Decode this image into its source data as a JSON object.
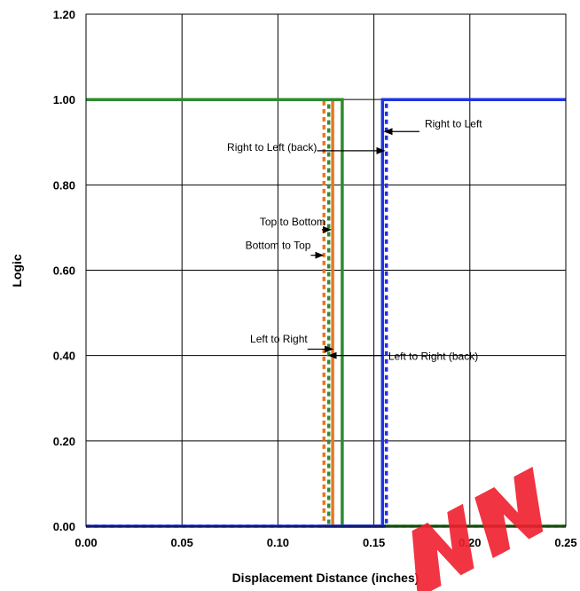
{
  "chart_data": {
    "type": "line",
    "xlabel": "Displacement Distance (inches)",
    "ylabel": "Logic",
    "xlim": [
      0,
      0.25
    ],
    "ylim": [
      0,
      1.2
    ],
    "xticks": [
      "0.00",
      "0.05",
      "0.10",
      "0.15",
      "0.20",
      "0.25"
    ],
    "yticks": [
      "0.00",
      "0.20",
      "0.40",
      "0.60",
      "0.80",
      "1.00",
      "1.20"
    ],
    "grid": true,
    "legend": "none",
    "series": [
      {
        "color": "#e87722",
        "dash": "dotted",
        "style": "falling",
        "x": [
          0,
          0.124,
          0.124,
          0.25
        ],
        "y": [
          1,
          1,
          0,
          0
        ]
      },
      {
        "color": "#e87722",
        "dash": "solid",
        "style": "falling",
        "x": [
          0,
          0.1285,
          0.1285,
          0.25
        ],
        "y": [
          1,
          1,
          0,
          0
        ]
      },
      {
        "color": "#2e8b2e",
        "dash": "dotted",
        "style": "falling",
        "x": [
          0,
          0.1265,
          0.1265,
          0.25
        ],
        "y": [
          1,
          1,
          0,
          0
        ]
      },
      {
        "color": "#2e8b2e",
        "dash": "solid",
        "style": "falling",
        "x": [
          0,
          0.1335,
          0.1335,
          0.25
        ],
        "y": [
          1,
          1,
          0,
          0
        ]
      },
      {
        "color": "#1f35e0",
        "dash": "solid",
        "style": "rising",
        "x": [
          0,
          0.1545,
          0.1545,
          0.25
        ],
        "y": [
          0,
          0,
          1,
          1
        ]
      },
      {
        "color": "#1f35e0",
        "dash": "dotted",
        "style": "rising",
        "x": [
          0,
          0.1565,
          0.1565,
          0.25
        ],
        "y": [
          0,
          0,
          1,
          1
        ]
      }
    ],
    "annotations": [
      {
        "text": "Right to Left",
        "label_x": 0.1765,
        "label_y": 0.935,
        "arrow_to_x": 0.1555,
        "arrow_to_y": 0.925
      },
      {
        "text": "Right to Left (back)",
        "label_x": 0.0735,
        "label_y": 0.88,
        "arrow_to_x": 0.1555,
        "arrow_to_y": 0.88
      },
      {
        "text": "Top to Bottom",
        "label_x": 0.0905,
        "label_y": 0.705,
        "arrow_to_x": 0.1275,
        "arrow_to_y": 0.695
      },
      {
        "text": "Bottom to Top",
        "label_x": 0.083,
        "label_y": 0.65,
        "arrow_to_x": 0.1235,
        "arrow_to_y": 0.635
      },
      {
        "text": "Left to Right",
        "label_x": 0.0855,
        "label_y": 0.43,
        "arrow_to_x": 0.1285,
        "arrow_to_y": 0.415
      },
      {
        "text": "Left to Right (back)",
        "label_x": 0.1575,
        "label_y": 0.39,
        "arrow_to_x": 0.1265,
        "arrow_to_y": 0.4
      }
    ]
  }
}
